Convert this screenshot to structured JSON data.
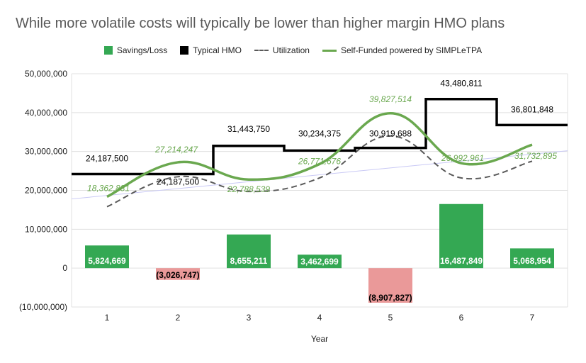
{
  "chart_data": {
    "type": "bar",
    "title": "While more volatile costs will typically be lower than higher margin HMO plans",
    "xlabel": "Year",
    "ylabel": "",
    "categories": [
      "1",
      "2",
      "3",
      "4",
      "5",
      "6",
      "7"
    ],
    "ylim": [
      -10000000,
      50000000
    ],
    "yticks": [
      -10000000,
      0,
      10000000,
      20000000,
      30000000,
      40000000,
      50000000
    ],
    "ytick_labels": [
      "(10,000,000)",
      "0",
      "10,000,000",
      "20,000,000",
      "30,000,000",
      "40,000,000",
      "50,000,000"
    ],
    "grid": true,
    "legend_position": "top",
    "series": [
      {
        "name": "Savings/Loss",
        "type": "bar",
        "values": [
          5824669,
          -3026747,
          8655211,
          3462699,
          -8907827,
          16487849,
          5068954
        ],
        "labels": [
          "5,824,669",
          "(3,026,747)",
          "8,655,211",
          "3,462,699",
          "(8,907,827)",
          "16,487,849",
          "5,068,954"
        ],
        "color_positive": "#34a853",
        "color_negative": "#ea9999"
      },
      {
        "name": "Typical HMO",
        "type": "step",
        "values": [
          24187500,
          24187500,
          31443750,
          30234375,
          30919688,
          43480811,
          36801848
        ],
        "labels": [
          "24,187,500",
          "24,187,500",
          "31,443,750",
          "30,234,375",
          "30,919,688",
          "43,480,811",
          "36,801,848"
        ],
        "color": "#000000"
      },
      {
        "name": "Utilization",
        "type": "line-dashed",
        "values": [
          15800000,
          23500000,
          19700000,
          23200000,
          34000000,
          23200000,
          27500000
        ],
        "color": "#595959"
      },
      {
        "name": "Self-Funded powered by SIMPLeTPA",
        "type": "line",
        "values": [
          18362831,
          27214247,
          22788539,
          26771676,
          39827514,
          26992961,
          31732895
        ],
        "labels": [
          "18,362,831",
          "27,214,247",
          "22,788,539",
          "26,771,676",
          "39,827,514",
          "26,992,961",
          "31,732,895"
        ],
        "color": "#6aa84f"
      }
    ],
    "trendline": {
      "color": "#c9c9f5",
      "start_value": 17800000,
      "end_value": 30200000
    }
  }
}
